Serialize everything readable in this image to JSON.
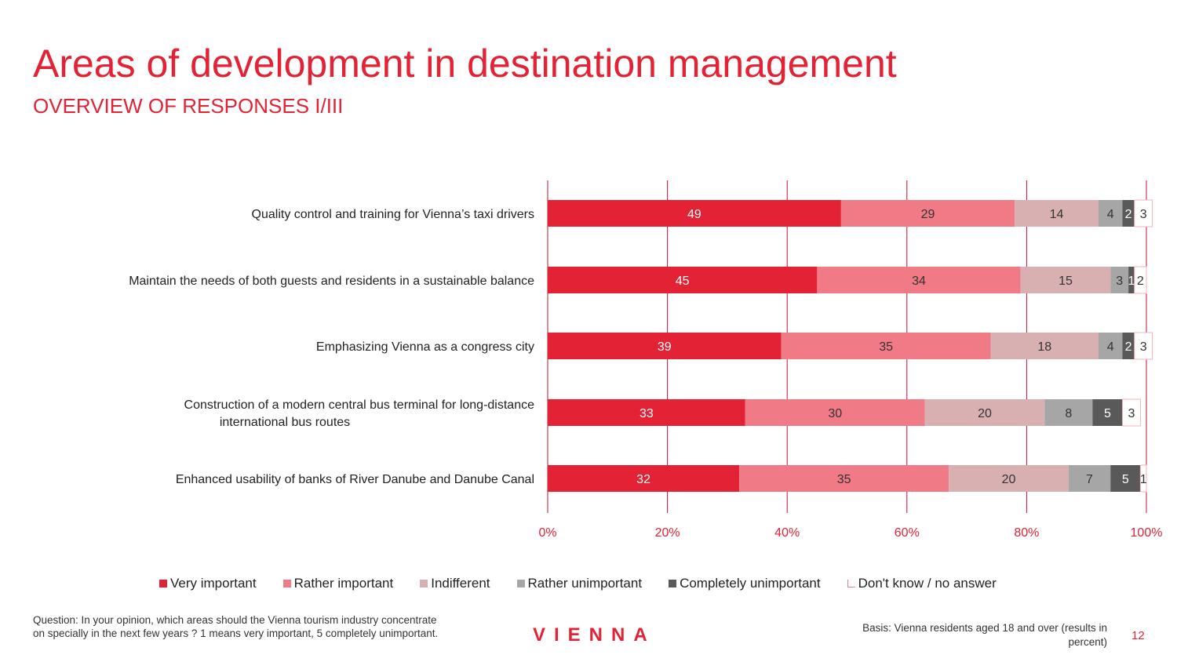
{
  "header": {
    "title": "Areas of development in destination management",
    "subtitle": "OVERVIEW OF RESPONSES I/III"
  },
  "colors": {
    "accent": "#e32236",
    "very_important": "#e32236",
    "rather_important": "#f07b87",
    "indifferent": "#d8b0b1",
    "rather_unimportant": "#a6a6a6",
    "completely_unimportant": "#595959",
    "dont_know": "#ffffff"
  },
  "chart_data": {
    "type": "bar",
    "orientation": "horizontal",
    "stacked": true,
    "title": "",
    "xlabel": "",
    "ylabel": "",
    "xlim": [
      0,
      100
    ],
    "xticks": [
      "0%",
      "20%",
      "40%",
      "60%",
      "80%",
      "100%"
    ],
    "categories": [
      "Quality control and training  for Vienna’s taxi drivers",
      "Maintain the needs of both guests and residents in a sustainable balance",
      "Emphasizing Vienna as a congress city",
      "Construction of a modern central bus terminal for long-distance international bus routes",
      "Enhanced usability of banks of River Danube and Danube Canal"
    ],
    "series": [
      {
        "name": "Very important",
        "color": "#e32236",
        "label_color": "#ffffff",
        "values": [
          49,
          45,
          39,
          33,
          32
        ]
      },
      {
        "name": "Rather important",
        "color": "#f07b87",
        "label_color": "#333333",
        "values": [
          29,
          34,
          35,
          30,
          35
        ]
      },
      {
        "name": "Indifferent",
        "color": "#d8b0b1",
        "label_color": "#333333",
        "values": [
          14,
          15,
          18,
          20,
          20
        ]
      },
      {
        "name": "Rather unimportant",
        "color": "#a6a6a6",
        "label_color": "#333333",
        "values": [
          4,
          3,
          4,
          8,
          7
        ]
      },
      {
        "name": "Completely unimportant",
        "color": "#595959",
        "label_color": "#ffffff",
        "values": [
          2,
          1,
          2,
          5,
          5
        ]
      },
      {
        "name": "Don't know / no answer",
        "color": "#ffffff",
        "label_color": "#333333",
        "values": [
          3,
          2,
          3,
          3,
          1
        ]
      }
    ],
    "legend_position": "bottom"
  },
  "legend": {
    "items": [
      {
        "label": "Very important",
        "color": "#e32236"
      },
      {
        "label": "Rather important",
        "color": "#f07b87"
      },
      {
        "label": "Indifferent",
        "color": "#d8b0b1"
      },
      {
        "label": "Rather unimportant",
        "color": "#a6a6a6"
      },
      {
        "label": "Completely unimportant",
        "color": "#595959"
      },
      {
        "label": "Don't know / no answer",
        "color": "#ffffff"
      }
    ]
  },
  "footer": {
    "question": "Question: In your opinion, which areas should the Vienna tourism industry concentrate on specially in the next few years ? 1 means very important, 5 completely unimportant.",
    "brand": "VIENNA",
    "basis": "Basis: Vienna residents aged 18 and over (results in percent)",
    "page_number": "12"
  }
}
